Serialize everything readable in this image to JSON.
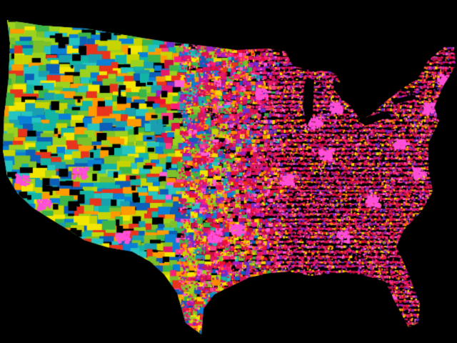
{
  "map": {
    "subject": "contiguous-united-states",
    "background_color": "#000000",
    "boundary_color": "#000000",
    "palette_west": [
      "#0a7fd6",
      "#1a9fb0",
      "#12b5a5",
      "#3ab54a",
      "#7cc12a",
      "#c8d400",
      "#f2e600",
      "#ff9a00",
      "#e8341c",
      "#0c5fb8",
      "#26c4c0",
      "#9bd21e"
    ],
    "palette_east": [
      "#e0104a",
      "#d4145e",
      "#ff1f7a",
      "#c81040",
      "#ff3d8a",
      "#ffd400",
      "#ff8a00",
      "#e5196b",
      "#a81cbf",
      "#6a2fd0",
      "#ff5fd6",
      "#f01030"
    ],
    "metro_color": "#ff4fd8",
    "shading_visible": true
  }
}
